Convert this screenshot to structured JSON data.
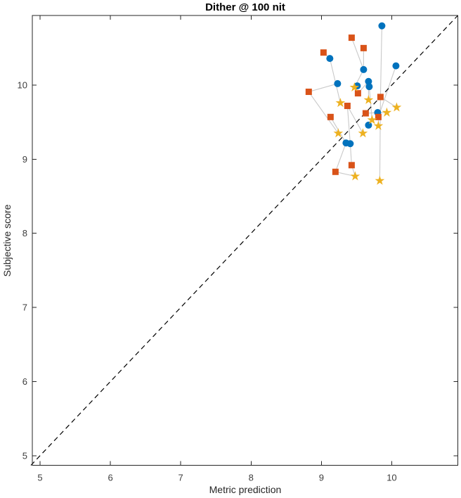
{
  "figure": {
    "title": "Dither @ 100 nit",
    "xlabel": "Metric prediction",
    "ylabel": "Subjective score"
  },
  "chart_data": {
    "type": "scatter",
    "title": "Dither @ 100 nit",
    "xlabel": "Metric prediction",
    "ylabel": "Subjective score",
    "xlim": [
      4.89,
      10.94
    ],
    "ylim": [
      4.87,
      10.94
    ],
    "xticks": [
      5,
      6,
      7,
      8,
      9,
      10
    ],
    "yticks": [
      5,
      6,
      7,
      8,
      9,
      10
    ],
    "grid": false,
    "legend": "none",
    "axis_color": "#262626",
    "identity_line": {
      "style": "dashed",
      "color": "#000000",
      "points": [
        [
          4.87,
          4.87
        ],
        [
          10.94,
          10.94
        ]
      ]
    },
    "series": [
      {
        "name": "circle-series",
        "marker": "circle",
        "color": "#0072BD",
        "points": [
          [
            9.86,
            10.8
          ],
          [
            9.12,
            10.36
          ],
          [
            10.06,
            10.26
          ],
          [
            9.6,
            10.21
          ],
          [
            9.23,
            10.02
          ],
          [
            9.67,
            10.05
          ],
          [
            9.68,
            9.98
          ],
          [
            9.51,
            9.99
          ],
          [
            9.8,
            9.63
          ],
          [
            9.67,
            9.46
          ],
          [
            9.35,
            9.22
          ],
          [
            9.41,
            9.21
          ]
        ]
      },
      {
        "name": "square-series",
        "marker": "square",
        "color": "#D95319",
        "points": [
          [
            9.43,
            10.64
          ],
          [
            9.6,
            10.5
          ],
          [
            9.03,
            10.44
          ],
          [
            8.82,
            9.91
          ],
          [
            9.52,
            9.89
          ],
          [
            9.84,
            9.84
          ],
          [
            9.37,
            9.72
          ],
          [
            9.63,
            9.62
          ],
          [
            9.81,
            9.57
          ],
          [
            9.13,
            9.57
          ],
          [
            9.43,
            8.92
          ],
          [
            9.2,
            8.83
          ]
        ]
      },
      {
        "name": "star-series",
        "marker": "star",
        "color": "#EDB120",
        "points": [
          [
            9.47,
            9.97
          ],
          [
            9.67,
            9.8
          ],
          [
            9.27,
            9.76
          ],
          [
            10.07,
            9.7
          ],
          [
            9.93,
            9.63
          ],
          [
            9.72,
            9.53
          ],
          [
            9.81,
            9.45
          ],
          [
            9.24,
            9.35
          ],
          [
            9.59,
            9.35
          ],
          [
            9.48,
            8.77
          ],
          [
            9.83,
            8.71
          ]
        ]
      }
    ],
    "connector_lines": {
      "color": "#C9C9C9",
      "segments": [
        [
          [
            9.86,
            10.8
          ],
          [
            9.84,
            9.84
          ]
        ],
        [
          [
            9.84,
            9.84
          ],
          [
            9.83,
            8.71
          ]
        ],
        [
          [
            9.84,
            9.84
          ],
          [
            10.07,
            9.7
          ]
        ],
        [
          [
            10.06,
            10.26
          ],
          [
            9.81,
            9.57
          ]
        ],
        [
          [
            9.81,
            9.57
          ],
          [
            9.81,
            9.45
          ]
        ],
        [
          [
            9.43,
            10.64
          ],
          [
            9.6,
            10.21
          ]
        ],
        [
          [
            9.6,
            10.5
          ],
          [
            9.6,
            10.21
          ]
        ],
        [
          [
            9.6,
            10.21
          ],
          [
            9.47,
            9.97
          ]
        ],
        [
          [
            9.03,
            10.44
          ],
          [
            9.12,
            10.36
          ]
        ],
        [
          [
            9.12,
            10.36
          ],
          [
            9.27,
            9.76
          ]
        ],
        [
          [
            8.82,
            9.91
          ],
          [
            9.23,
            10.02
          ]
        ],
        [
          [
            8.82,
            9.91
          ],
          [
            9.24,
            9.35
          ]
        ],
        [
          [
            9.52,
            9.89
          ],
          [
            9.67,
            10.05
          ]
        ],
        [
          [
            9.67,
            10.05
          ],
          [
            9.67,
            9.8
          ]
        ],
        [
          [
            9.68,
            9.98
          ],
          [
            9.72,
            9.53
          ]
        ],
        [
          [
            9.63,
            9.62
          ],
          [
            9.8,
            9.63
          ]
        ],
        [
          [
            9.8,
            9.63
          ],
          [
            9.93,
            9.63
          ]
        ],
        [
          [
            9.37,
            9.72
          ],
          [
            9.59,
            9.35
          ]
        ],
        [
          [
            9.37,
            9.72
          ],
          [
            9.41,
            9.21
          ]
        ],
        [
          [
            9.41,
            9.21
          ],
          [
            9.43,
            8.92
          ]
        ],
        [
          [
            9.13,
            9.57
          ],
          [
            9.35,
            9.22
          ]
        ],
        [
          [
            9.2,
            8.83
          ],
          [
            9.35,
            9.22
          ]
        ],
        [
          [
            9.2,
            8.83
          ],
          [
            9.48,
            8.77
          ]
        ],
        [
          [
            9.43,
            8.92
          ],
          [
            9.48,
            8.77
          ]
        ]
      ]
    }
  }
}
